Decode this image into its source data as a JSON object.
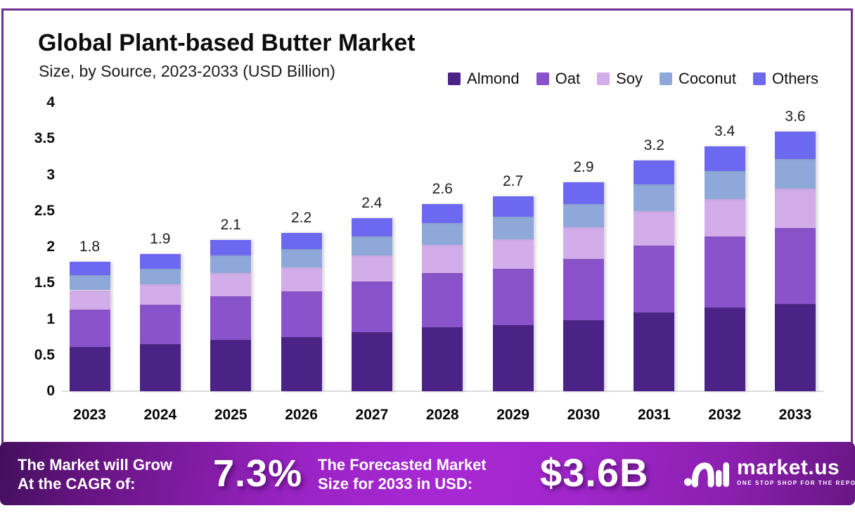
{
  "header": {
    "title": "Global Plant-based Butter Market",
    "subtitle": "Size, by Source, 2023-2033 (USD Billion)"
  },
  "chart_data": {
    "type": "bar",
    "stacked": true,
    "title": "Global Plant-based Butter Market Size, by Source, 2023-2033 (USD Billion)",
    "unit": "USD Billion",
    "categories": [
      "2023",
      "2024",
      "2025",
      "2026",
      "2027",
      "2028",
      "2029",
      "2030",
      "2031",
      "2032",
      "2033"
    ],
    "series": [
      {
        "name": "Almond",
        "color": "#4b2286",
        "values": [
          0.61,
          0.65,
          0.71,
          0.75,
          0.82,
          0.89,
          0.92,
          0.99,
          1.09,
          1.16,
          1.21
        ]
      },
      {
        "name": "Oat",
        "color": "#8a53cb",
        "values": [
          0.52,
          0.55,
          0.61,
          0.64,
          0.7,
          0.75,
          0.78,
          0.84,
          0.93,
          0.99,
          1.05
        ]
      },
      {
        "name": "Soy",
        "color": "#d2ade9",
        "values": [
          0.27,
          0.28,
          0.32,
          0.33,
          0.36,
          0.39,
          0.41,
          0.44,
          0.48,
          0.51,
          0.55
        ]
      },
      {
        "name": "Coconut",
        "color": "#8ea8da",
        "values": [
          0.21,
          0.22,
          0.24,
          0.25,
          0.27,
          0.3,
          0.31,
          0.33,
          0.37,
          0.39,
          0.41
        ]
      },
      {
        "name": "Others",
        "color": "#6d68f0",
        "values": [
          0.19,
          0.2,
          0.22,
          0.23,
          0.25,
          0.27,
          0.28,
          0.3,
          0.33,
          0.35,
          0.38
        ]
      }
    ],
    "totals_display": [
      "1.8",
      "1.9",
      "2.1",
      "2.2",
      "2.4",
      "2.6",
      "2.7",
      "2.9",
      "3.2",
      "3.4",
      "3.6"
    ],
    "ylim": [
      0,
      4
    ],
    "yticks": [
      0,
      0.5,
      1,
      1.5,
      2,
      2.5,
      3,
      3.5,
      4
    ],
    "grid": false,
    "legend_position": "top-right",
    "legend": [
      "Almond",
      "Oat",
      "Soy",
      "Coconut",
      "Others"
    ]
  },
  "banner": {
    "cagr": {
      "lines": [
        "The Market will Grow",
        "At the CAGR of:"
      ],
      "value": "7.3%"
    },
    "forecast": {
      "lines": [
        "The Forecasted Market",
        "Size for 2033 in USD:"
      ],
      "value": "$3.6B"
    }
  },
  "logo": {
    "name": "market.us",
    "tagline": "ONE STOP SHOP FOR THE REPORTS"
  },
  "colors": {
    "frame_border": "#6f2e93",
    "banner_dark": "#430f5c",
    "banner_bright": "#a728d3",
    "baseline": "#dddddd",
    "text": "#0d0d0d"
  }
}
